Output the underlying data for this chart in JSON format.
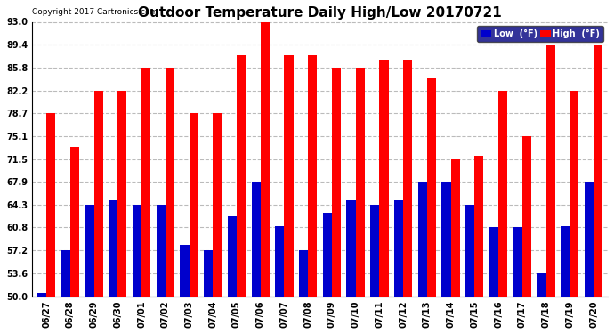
{
  "title": "Outdoor Temperature Daily High/Low 20170721",
  "copyright": "Copyright 2017 Cartronics.com",
  "dates": [
    "06/27",
    "06/28",
    "06/29",
    "06/30",
    "07/01",
    "07/02",
    "07/03",
    "07/04",
    "07/05",
    "07/06",
    "07/07",
    "07/08",
    "07/09",
    "07/10",
    "07/11",
    "07/12",
    "07/13",
    "07/14",
    "07/15",
    "07/16",
    "07/17",
    "07/18",
    "07/19",
    "07/20"
  ],
  "highs": [
    78.7,
    73.4,
    82.2,
    82.2,
    85.8,
    85.8,
    78.7,
    78.7,
    87.8,
    93.0,
    87.8,
    87.8,
    85.8,
    85.8,
    87.1,
    87.1,
    84.2,
    71.5,
    72.0,
    82.2,
    75.1,
    89.4,
    82.2,
    89.4
  ],
  "lows": [
    50.5,
    57.2,
    64.3,
    65.0,
    64.3,
    64.3,
    58.0,
    57.2,
    62.5,
    67.9,
    61.0,
    57.2,
    63.0,
    65.0,
    64.3,
    65.0,
    67.9,
    67.9,
    64.3,
    60.8,
    60.8,
    53.6,
    61.0,
    67.9
  ],
  "high_color": "#ff0000",
  "low_color": "#0000cc",
  "bg_color": "#ffffff",
  "grid_color": "#bbbbbb",
  "ylim_min": 50.0,
  "ylim_max": 93.0,
  "yticks": [
    50.0,
    53.6,
    57.2,
    60.8,
    64.3,
    67.9,
    71.5,
    75.1,
    78.7,
    82.2,
    85.8,
    89.4,
    93.0
  ],
  "bar_width": 0.38,
  "title_fontsize": 11,
  "tick_fontsize": 7,
  "legend_low_label": "Low  (°F)",
  "legend_high_label": "High  (°F)"
}
